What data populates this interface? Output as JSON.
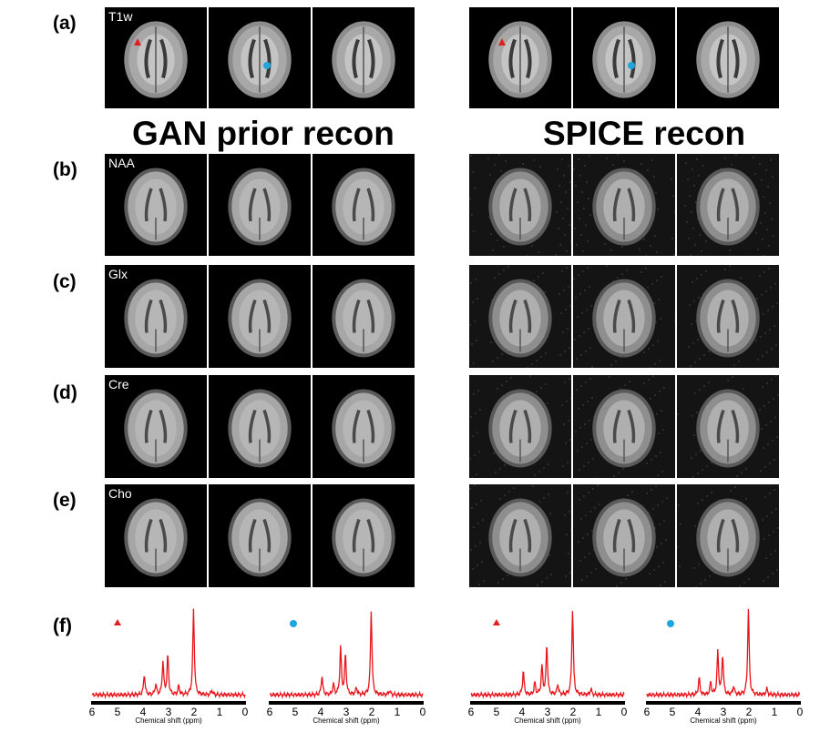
{
  "figure": {
    "panels": {
      "a": "(a)",
      "b": "(b)",
      "c": "(c)",
      "d": "(d)",
      "e": "(e)",
      "f": "(f)"
    },
    "headings": {
      "left": "GAN prior recon",
      "right": "SPICE recon"
    },
    "row_labels": {
      "t1w": "T1w",
      "naa": "NAA",
      "glx": "Glx",
      "cre": "Cre",
      "cho": "Cho"
    },
    "markers": {
      "triangle_color": "#e02020",
      "circle_color": "#1ea6e0"
    }
  },
  "chart_data": {
    "type": "line",
    "title": "",
    "xlabel": "Chemical shift (ppm)",
    "ylabel": "",
    "xlim": [
      6,
      0
    ],
    "x_ticks": [
      "6",
      "5",
      "4",
      "3",
      "2",
      "1",
      "0"
    ],
    "line_color": "#e8141c",
    "series": [
      {
        "name": "GAN prior recon - triangle voxel",
        "marker": "triangle",
        "peaks": [
          {
            "ppm": 3.95,
            "height": 0.24
          },
          {
            "ppm": 3.5,
            "height": 0.12
          },
          {
            "ppm": 3.22,
            "height": 0.38
          },
          {
            "ppm": 3.03,
            "height": 0.46
          },
          {
            "ppm": 2.6,
            "height": 0.1
          },
          {
            "ppm": 2.02,
            "height": 1.0
          },
          {
            "ppm": 1.3,
            "height": 0.05
          }
        ]
      },
      {
        "name": "GAN prior recon - circle voxel",
        "marker": "circle",
        "peaks": [
          {
            "ppm": 3.95,
            "height": 0.22
          },
          {
            "ppm": 3.5,
            "height": 0.12
          },
          {
            "ppm": 3.22,
            "height": 0.55
          },
          {
            "ppm": 3.03,
            "height": 0.47
          },
          {
            "ppm": 2.6,
            "height": 0.08
          },
          {
            "ppm": 2.02,
            "height": 0.98
          },
          {
            "ppm": 1.3,
            "height": 0.05
          }
        ]
      },
      {
        "name": "SPICE recon - triangle voxel",
        "marker": "triangle",
        "peaks": [
          {
            "ppm": 3.95,
            "height": 0.28
          },
          {
            "ppm": 3.5,
            "height": 0.14
          },
          {
            "ppm": 3.22,
            "height": 0.33
          },
          {
            "ppm": 3.03,
            "height": 0.58
          },
          {
            "ppm": 2.6,
            "height": 0.12
          },
          {
            "ppm": 2.02,
            "height": 1.0
          },
          {
            "ppm": 1.3,
            "height": 0.07
          }
        ]
      },
      {
        "name": "SPICE recon - circle voxel",
        "marker": "circle",
        "peaks": [
          {
            "ppm": 3.95,
            "height": 0.2
          },
          {
            "ppm": 3.5,
            "height": 0.14
          },
          {
            "ppm": 3.22,
            "height": 0.5
          },
          {
            "ppm": 3.03,
            "height": 0.46
          },
          {
            "ppm": 2.6,
            "height": 0.1
          },
          {
            "ppm": 2.02,
            "height": 1.0
          },
          {
            "ppm": 1.3,
            "height": 0.07
          }
        ]
      }
    ]
  }
}
